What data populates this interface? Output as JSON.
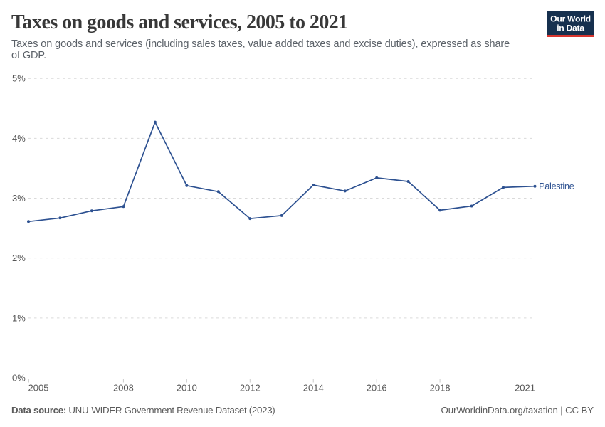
{
  "header": {
    "title": "Taxes on goods and services, 2005 to 2021",
    "subtitle_line1": "Taxes on goods and services (including sales taxes, value added taxes and excise duties), expressed as share",
    "subtitle_line2": "of GDP."
  },
  "logo": {
    "name": "Our World in Data",
    "line1": "Our World",
    "line2": "in Data",
    "background_color": "#16304e",
    "accent_bar_color": "#d8352e"
  },
  "chart_data": {
    "type": "line",
    "title": "Taxes on goods and services, 2005 to 2021",
    "xlabel": "",
    "ylabel": "",
    "x": [
      2005,
      2006,
      2007,
      2008,
      2009,
      2010,
      2011,
      2012,
      2013,
      2014,
      2015,
      2016,
      2017,
      2018,
      2019,
      2020,
      2021
    ],
    "series": [
      {
        "name": "Palestine",
        "color": "#2d5191",
        "values": [
          2.61,
          2.67,
          2.79,
          2.86,
          4.27,
          3.21,
          3.11,
          2.66,
          2.71,
          3.22,
          3.12,
          3.34,
          3.28,
          2.8,
          2.87,
          3.18,
          3.2
        ]
      }
    ],
    "ylim": [
      0,
      5
    ],
    "yticks": [
      0,
      1,
      2,
      3,
      4,
      5
    ],
    "ytick_labels": [
      "0%",
      "1%",
      "2%",
      "3%",
      "4%",
      "5%"
    ],
    "xticks": [
      2005,
      2008,
      2010,
      2012,
      2014,
      2016,
      2018,
      2021
    ],
    "xtick_labels": [
      "2005",
      "2008",
      "2010",
      "2012",
      "2014",
      "2016",
      "2018",
      "2021"
    ],
    "grid": true,
    "legend_position": "end-of-line"
  },
  "footer": {
    "source_label": "Data source:",
    "source_text": " UNU-WIDER Government Revenue Dataset (2023)",
    "attribution": "OurWorldinData.org/taxation | CC BY"
  }
}
